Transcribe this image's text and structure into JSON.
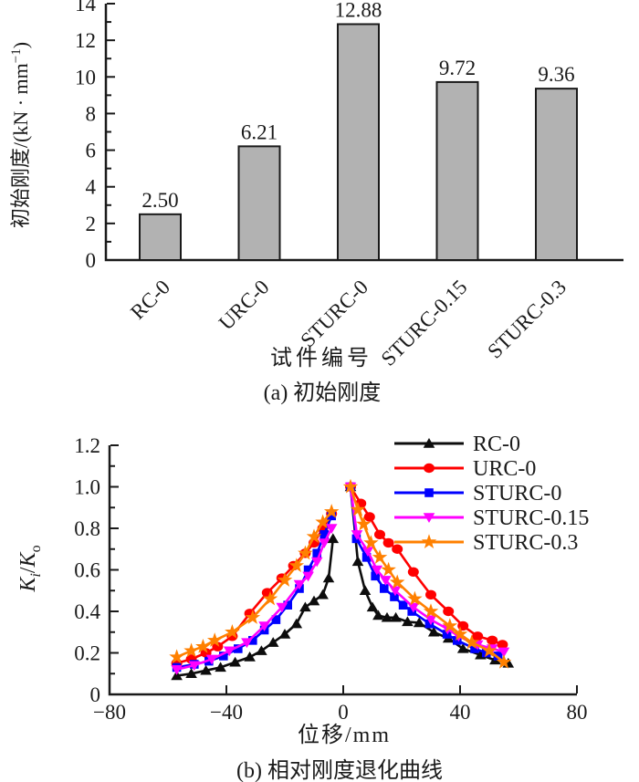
{
  "page": {
    "background": "#ffffff"
  },
  "panel_a": {
    "caption": "(a)  初始刚度",
    "xlabel": "试件编号",
    "ylabel_main": "初始刚度/(kN · mm",
    "ylabel_sup": "−1",
    "ylabel_end": ")",
    "ytick_labels": [
      "0",
      "2",
      "4",
      "6",
      "8",
      "10",
      "12",
      "14"
    ],
    "category_labels": [
      "RC-0",
      "URC-0",
      "STURC-0",
      "STURC-0.15",
      "STURC-0.3"
    ],
    "value_labels": [
      "2.50",
      "6.21",
      "12.88",
      "9.72",
      "9.36"
    ]
  },
  "panel_b": {
    "caption": "(b)  相对刚度退化曲线",
    "xlabel": "位移/mm",
    "ylabel_parts": {
      "k1": "K",
      "sub_i": "i",
      "slash": "/",
      "k2": "K",
      "sub_o": "o"
    },
    "xtick_labels": [
      "−80",
      "−40",
      "0",
      "40",
      "80"
    ],
    "ytick_labels": [
      "0",
      "0.2",
      "0.4",
      "0.6",
      "0.8",
      "1.0",
      "1.2"
    ],
    "legend_labels": [
      "RC-0",
      "URC-0",
      "STURC-0",
      "STURC-0.15",
      "STURC-0.3"
    ]
  },
  "colors": {
    "axis": "#1a1a1a",
    "bar_fill": "#b2b2b2",
    "bar_edge": "#1a1a1a",
    "rc0": "#0d0d0d",
    "urc0": "#ff0000",
    "sturc0": "#0000ff",
    "sturc015": "#ff00ff",
    "sturc03": "#ff8000"
  },
  "chart_data": [
    {
      "type": "bar",
      "title": "(a) 初始刚度",
      "categories": [
        "RC-0",
        "URC-0",
        "STURC-0",
        "STURC-0.15",
        "STURC-0.3"
      ],
      "values": [
        2.5,
        6.21,
        12.88,
        9.72,
        9.36
      ],
      "value_labels": [
        "2.50",
        "6.21",
        "12.88",
        "9.72",
        "9.36"
      ],
      "xlabel": "试件编号",
      "ylabel": "初始刚度/(kN·mm⁻¹)",
      "ylim": [
        0,
        14
      ],
      "yticks": [
        0,
        2,
        4,
        6,
        8,
        10,
        12,
        14
      ],
      "minor_ytick_step": 1,
      "grid": false,
      "bar_color": "#b2b2b2",
      "bar_edge_color": "#1a1a1a"
    },
    {
      "type": "line",
      "title": "(b) 相对刚度退化曲线",
      "xlabel": "位移/mm",
      "ylabel": "Ki/Ko",
      "xlim": [
        -80,
        80
      ],
      "ylim": [
        0,
        1.2
      ],
      "xticks": [
        -80,
        -40,
        0,
        40,
        80
      ],
      "yticks": [
        0,
        0.2,
        0.4,
        0.6,
        0.8,
        1.0,
        1.2
      ],
      "minor_ytick_step": 0.1,
      "grid": false,
      "legend_position": "top-right",
      "series": [
        {
          "name": "RC-0",
          "color": "#0d0d0d",
          "marker": "triangle-up",
          "segments": [
            [
              [
                -57,
                0.09
              ],
              [
                -52,
                0.1
              ],
              [
                -47,
                0.115
              ],
              [
                -42,
                0.13
              ],
              [
                -37,
                0.155
              ],
              [
                -32,
                0.18
              ],
              [
                -28,
                0.21
              ],
              [
                -24,
                0.25
              ],
              [
                -20,
                0.29
              ],
              [
                -16,
                0.34
              ],
              [
                -13,
                0.42
              ],
              [
                -10,
                0.45
              ],
              [
                -7,
                0.48
              ],
              [
                -5,
                0.56
              ],
              [
                -3.5,
                0.75
              ]
            ],
            [
              [
                2.5,
                1.0
              ],
              [
                5,
                0.64
              ],
              [
                7.5,
                0.5
              ],
              [
                10,
                0.42
              ],
              [
                12,
                0.38
              ],
              [
                15,
                0.37
              ],
              [
                18,
                0.37
              ],
              [
                22,
                0.35
              ],
              [
                26,
                0.345
              ],
              [
                31,
                0.3
              ],
              [
                36,
                0.27
              ],
              [
                41,
                0.22
              ],
              [
                47,
                0.19
              ],
              [
                52,
                0.165
              ],
              [
                56.5,
                0.15
              ]
            ]
          ]
        },
        {
          "name": "URC-0",
          "color": "#ff0000",
          "marker": "circle",
          "segments": [
            [
              [
                -57,
                0.15
              ],
              [
                -52,
                0.17
              ],
              [
                -47,
                0.2
              ],
              [
                -43,
                0.23
              ],
              [
                -38,
                0.28
              ],
              [
                -32,
                0.39
              ],
              [
                -26,
                0.49
              ],
              [
                -21,
                0.56
              ],
              [
                -17,
                0.62
              ],
              [
                -13,
                0.68
              ],
              [
                -10,
                0.73
              ],
              [
                -7,
                0.8
              ],
              [
                -4,
                0.87
              ]
            ],
            [
              [
                2.5,
                1.0
              ],
              [
                6,
                0.92
              ],
              [
                9,
                0.855
              ],
              [
                12.5,
                0.77
              ],
              [
                15.5,
                0.73
              ],
              [
                18.5,
                0.7
              ],
              [
                24,
                0.59
              ],
              [
                30,
                0.48
              ],
              [
                36,
                0.4
              ],
              [
                41,
                0.33
              ],
              [
                46,
                0.28
              ],
              [
                51,
                0.26
              ],
              [
                54.5,
                0.24
              ]
            ]
          ]
        },
        {
          "name": "STURC-0",
          "color": "#0000ff",
          "marker": "square",
          "segments": [
            [
              [
                -57,
                0.13
              ],
              [
                -51,
                0.145
              ],
              [
                -46,
                0.16
              ],
              [
                -41,
                0.185
              ],
              [
                -36,
                0.22
              ],
              [
                -31,
                0.26
              ],
              [
                -27,
                0.31
              ],
              [
                -23,
                0.36
              ],
              [
                -19,
                0.43
              ],
              [
                -15,
                0.51
              ],
              [
                -12,
                0.6
              ],
              [
                -9,
                0.68
              ],
              [
                -6.5,
                0.77
              ],
              [
                -4,
                0.86
              ]
            ],
            [
              [
                2.5,
                1.0
              ],
              [
                4.5,
                0.75
              ],
              [
                8,
                0.66
              ],
              [
                11,
                0.57
              ],
              [
                14,
                0.51
              ],
              [
                17.5,
                0.47
              ],
              [
                20.5,
                0.43
              ],
              [
                23.5,
                0.4
              ],
              [
                29.5,
                0.34
              ],
              [
                35.5,
                0.29
              ],
              [
                39,
                0.26
              ],
              [
                45,
                0.22
              ],
              [
                49,
                0.2
              ],
              [
                53,
                0.185
              ]
            ]
          ]
        },
        {
          "name": "STURC-0.15",
          "color": "#ff00ff",
          "marker": "triangle-down",
          "segments": [
            [
              [
                -57,
                0.12
              ],
              [
                -51,
                0.14
              ],
              [
                -45,
                0.17
              ],
              [
                -39,
                0.21
              ],
              [
                -33,
                0.25
              ],
              [
                -27,
                0.33
              ],
              [
                -21,
                0.42
              ],
              [
                -15,
                0.53
              ],
              [
                -12,
                0.57
              ],
              [
                -9,
                0.64
              ],
              [
                -6.5,
                0.73
              ],
              [
                -4,
                0.8
              ]
            ],
            [
              [
                2.5,
                1.0
              ],
              [
                4.7,
                0.77
              ],
              [
                8.4,
                0.69
              ],
              [
                11.5,
                0.6
              ],
              [
                14.5,
                0.55
              ],
              [
                17.8,
                0.5
              ],
              [
                24,
                0.42
              ],
              [
                30,
                0.36
              ],
              [
                35.7,
                0.315
              ],
              [
                39.5,
                0.28
              ],
              [
                46,
                0.24
              ],
              [
                51,
                0.22
              ],
              [
                55,
                0.205
              ]
            ]
          ]
        },
        {
          "name": "STURC-0.3",
          "color": "#ff8000",
          "marker": "star",
          "segments": [
            [
              [
                -57,
                0.18
              ],
              [
                -52,
                0.21
              ],
              [
                -48,
                0.23
              ],
              [
                -44,
                0.26
              ],
              [
                -38,
                0.3
              ],
              [
                -31,
                0.37
              ],
              [
                -25,
                0.46
              ],
              [
                -20,
                0.55
              ],
              [
                -16,
                0.62
              ],
              [
                -13,
                0.68
              ],
              [
                -10,
                0.76
              ],
              [
                -7,
                0.83
              ],
              [
                -4,
                0.88
              ]
            ],
            [
              [
                2.5,
                1.0
              ],
              [
                5,
                0.89
              ],
              [
                7,
                0.82
              ],
              [
                9.5,
                0.73
              ],
              [
                12.5,
                0.66
              ],
              [
                15.5,
                0.6
              ],
              [
                18.5,
                0.54
              ],
              [
                24.5,
                0.46
              ],
              [
                30,
                0.4
              ],
              [
                36.5,
                0.33
              ],
              [
                40,
                0.29
              ],
              [
                44,
                0.25
              ],
              [
                50,
                0.21
              ],
              [
                55,
                0.155
              ]
            ]
          ]
        }
      ]
    }
  ]
}
